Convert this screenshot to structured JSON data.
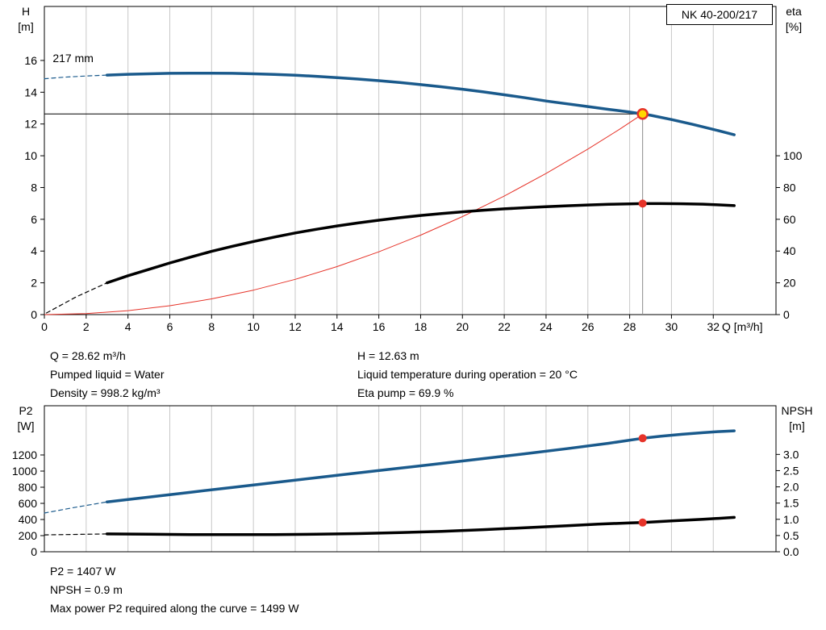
{
  "model_box": "NK 40-200/217",
  "info_text": {
    "left": [
      "Q = 28.62 m³/h",
      "Pumped liquid = Water",
      "Density = 998.2 kg/m³"
    ],
    "right": [
      "H = 12.63 m",
      "Liquid temperature during operation = 20 °C",
      "Eta pump = 69.9 %"
    ]
  },
  "footer_text": [
    "P2 = 1407 W",
    "NPSH = 0.9 m",
    "Max power P2 required along the curve = 1499 W"
  ],
  "colors": {
    "curve_blue": "#1a5a8c",
    "curve_black": "#000000",
    "system_red": "#e63329",
    "duty_yellow": "#ffd800",
    "grid": "#c8c8c8",
    "duty_line_gray": "#8a8a8a"
  },
  "chart_data": [
    {
      "type": "line",
      "name": "pump-performance-chart",
      "x_title": "Q [m³/h]",
      "y_left_title": [
        "H",
        "[m]"
      ],
      "y_right_title": [
        "eta",
        "[%]"
      ],
      "x_range": [
        0,
        35
      ],
      "y_left_range": [
        0,
        19.4
      ],
      "y_right_range": [
        0,
        194
      ],
      "grid": "vertical",
      "x_tick_labels": [
        "0",
        "2",
        "4",
        "6",
        "8",
        "10",
        "12",
        "14",
        "16",
        "18",
        "20",
        "22",
        "24",
        "26",
        "28",
        "30",
        "32"
      ],
      "y_left_tick_labels": [
        "0",
        "2",
        "4",
        "6",
        "8",
        "10",
        "12",
        "14",
        "16"
      ],
      "y_right_tick_labels": [
        "0",
        "20",
        "40",
        "60",
        "80",
        "100"
      ],
      "x_grid": [
        2,
        4,
        6,
        8,
        10,
        12,
        14,
        16,
        18,
        20,
        22,
        24,
        26,
        28,
        30,
        32
      ],
      "series": [
        {
          "name": "pump-curve-extrapolated",
          "axis": "left",
          "color": "#1a5a8c",
          "width": 1.2,
          "dash": "5 4",
          "points": [
            [
              0,
              14.85
            ],
            [
              1,
              14.95
            ],
            [
              2,
              15.02
            ],
            [
              3,
              15.08
            ]
          ]
        },
        {
          "name": "pump-curve-217mm",
          "axis": "left",
          "color": "#1a5a8c",
          "width": 3.5,
          "points": [
            [
              3,
              15.08
            ],
            [
              4,
              15.13
            ],
            [
              5,
              15.16
            ],
            [
              6,
              15.19
            ],
            [
              7,
              15.2
            ],
            [
              8,
              15.2
            ],
            [
              9,
              15.19
            ],
            [
              10,
              15.16
            ],
            [
              11,
              15.12
            ],
            [
              12,
              15.07
            ],
            [
              13,
              15.0
            ],
            [
              14,
              14.92
            ],
            [
              15,
              14.83
            ],
            [
              16,
              14.73
            ],
            [
              17,
              14.61
            ],
            [
              18,
              14.48
            ],
            [
              19,
              14.34
            ],
            [
              20,
              14.19
            ],
            [
              21,
              14.02
            ],
            [
              22,
              13.84
            ],
            [
              23,
              13.65
            ],
            [
              24,
              13.45
            ],
            [
              25,
              13.27
            ],
            [
              26,
              13.1
            ],
            [
              27,
              12.92
            ],
            [
              28,
              12.75
            ],
            [
              28.62,
              12.63
            ],
            [
              29,
              12.55
            ],
            [
              30,
              12.28
            ],
            [
              31,
              11.98
            ],
            [
              32,
              11.66
            ],
            [
              33,
              11.32
            ]
          ]
        },
        {
          "name": "system-curve",
          "axis": "left",
          "color": "#e63329",
          "width": 1,
          "points": [
            [
              0,
              0
            ],
            [
              2,
              0.06
            ],
            [
              4,
              0.25
            ],
            [
              6,
              0.56
            ],
            [
              8,
              0.99
            ],
            [
              10,
              1.54
            ],
            [
              12,
              2.22
            ],
            [
              14,
              3.02
            ],
            [
              16,
              3.95
            ],
            [
              18,
              5.0
            ],
            [
              20,
              6.17
            ],
            [
              22,
              7.46
            ],
            [
              24,
              8.88
            ],
            [
              26,
              10.42
            ],
            [
              27.5,
              11.65
            ],
            [
              28.62,
              12.63
            ]
          ]
        },
        {
          "name": "efficiency-curve-extrapolated",
          "axis": "right",
          "color": "#000000",
          "width": 1.2,
          "dash": "5 4",
          "points": [
            [
              0.1,
              1
            ],
            [
              1.5,
              11
            ],
            [
              3,
              20
            ]
          ]
        },
        {
          "name": "efficiency-curve",
          "axis": "right",
          "color": "#000000",
          "width": 3.5,
          "points": [
            [
              3,
              20
            ],
            [
              4,
              24.5
            ],
            [
              5,
              28.5
            ],
            [
              6,
              32.5
            ],
            [
              7,
              36.2
            ],
            [
              8,
              39.8
            ],
            [
              9,
              43
            ],
            [
              10,
              46
            ],
            [
              11,
              48.8
            ],
            [
              12,
              51.4
            ],
            [
              13,
              53.7
            ],
            [
              14,
              55.8
            ],
            [
              15,
              57.7
            ],
            [
              16,
              59.4
            ],
            [
              17,
              61
            ],
            [
              18,
              62.4
            ],
            [
              19,
              63.6
            ],
            [
              20,
              64.7
            ],
            [
              21,
              65.7
            ],
            [
              22,
              66.6
            ],
            [
              23,
              67.3
            ],
            [
              24,
              67.9
            ],
            [
              25,
              68.5
            ],
            [
              26,
              69
            ],
            [
              27,
              69.4
            ],
            [
              28,
              69.7
            ],
            [
              28.62,
              69.9
            ],
            [
              29.5,
              69.9
            ],
            [
              30.5,
              69.8
            ],
            [
              31.5,
              69.5
            ],
            [
              32.2,
              69.1
            ],
            [
              33,
              68.6
            ]
          ]
        }
      ],
      "ref_lines": [
        {
          "name": "duty-flow-line",
          "type": "v",
          "x": 28.62,
          "y1": 0,
          "y2": 12.63,
          "axis": "left",
          "color": "#8a8a8a",
          "width": 1
        },
        {
          "name": "duty-head-line",
          "type": "h",
          "y": 12.63,
          "x1": 0,
          "x2": 28.62,
          "axis": "left",
          "color": "#000000",
          "width": 1
        }
      ],
      "markers": [
        {
          "name": "duty-point",
          "x": 28.62,
          "y": 12.63,
          "axis": "left",
          "r": 6,
          "fill": "#ffd800",
          "stroke": "#e63329",
          "stroke_width": 2.5
        },
        {
          "name": "efficiency-point",
          "x": 28.62,
          "y": 69.9,
          "axis": "right",
          "r": 5,
          "fill": "#e63329"
        }
      ],
      "annotations": [
        {
          "name": "impeller-size-label",
          "text": "217 mm",
          "x": 0.4,
          "y": 15.9,
          "axis": "left"
        }
      ]
    },
    {
      "type": "line",
      "name": "power-npsh-chart",
      "x_title": "",
      "y_left_title": [
        "P2",
        "[W]"
      ],
      "y_right_title": [
        "NPSH",
        "[m]"
      ],
      "x_range": [
        0,
        35
      ],
      "y_left_range": [
        0,
        1810
      ],
      "y_right_range": [
        0,
        4.5
      ],
      "grid": "vertical",
      "x_tick_labels": [],
      "y_left_tick_labels": [
        "0",
        "200",
        "400",
        "600",
        "800",
        "1000",
        "1200"
      ],
      "y_right_tick_labels": [
        "0.0",
        "0.5",
        "1.0",
        "1.5",
        "2.0",
        "2.5",
        "3.0"
      ],
      "x_grid": [
        2,
        4,
        6,
        8,
        10,
        12,
        14,
        16,
        18,
        20,
        22,
        24,
        26,
        28,
        30,
        32
      ],
      "series": [
        {
          "name": "p2-curve-extrapolated",
          "axis": "left",
          "color": "#1a5a8c",
          "width": 1.2,
          "dash": "5 4",
          "points": [
            [
              0,
              480
            ],
            [
              1.5,
              552
            ],
            [
              3,
              618
            ]
          ]
        },
        {
          "name": "p2-curve",
          "axis": "left",
          "color": "#1a5a8c",
          "width": 3.5,
          "points": [
            [
              3,
              618
            ],
            [
              5,
              678
            ],
            [
              7,
              738
            ],
            [
              9,
              798
            ],
            [
              11,
              858
            ],
            [
              13,
              918
            ],
            [
              15,
              977
            ],
            [
              17,
              1036
            ],
            [
              19,
              1095
            ],
            [
              21,
              1155
            ],
            [
              23,
              1215
            ],
            [
              25,
              1278
            ],
            [
              27,
              1345
            ],
            [
              28.62,
              1407
            ],
            [
              29.5,
              1432
            ],
            [
              30.5,
              1456
            ],
            [
              31.5,
              1476
            ],
            [
              32.2,
              1489
            ],
            [
              33,
              1499
            ]
          ]
        },
        {
          "name": "npsh-curve-extrapolated",
          "axis": "right",
          "color": "#000000",
          "width": 1.2,
          "dash": "5 4",
          "points": [
            [
              0,
              0.52
            ],
            [
              3,
              0.55
            ]
          ]
        },
        {
          "name": "npsh-curve",
          "axis": "right",
          "color": "#000000",
          "width": 3.5,
          "points": [
            [
              3,
              0.55
            ],
            [
              5,
              0.54
            ],
            [
              7,
              0.53
            ],
            [
              9,
              0.53
            ],
            [
              11,
              0.53
            ],
            [
              13,
              0.54
            ],
            [
              15,
              0.56
            ],
            [
              17,
              0.59
            ],
            [
              19,
              0.63
            ],
            [
              21,
              0.68
            ],
            [
              23,
              0.74
            ],
            [
              25,
              0.8
            ],
            [
              26.5,
              0.85
            ],
            [
              28,
              0.89
            ],
            [
              28.62,
              0.9
            ],
            [
              30,
              0.95
            ],
            [
              31.5,
              1.0
            ],
            [
              33,
              1.06
            ]
          ]
        }
      ],
      "ref_lines": [],
      "markers": [
        {
          "name": "p2-point",
          "x": 28.62,
          "y": 1407,
          "axis": "left",
          "r": 5,
          "fill": "#e63329"
        },
        {
          "name": "npsh-point",
          "x": 28.62,
          "y": 0.9,
          "axis": "right",
          "r": 5,
          "fill": "#e63329"
        }
      ],
      "annotations": []
    }
  ]
}
